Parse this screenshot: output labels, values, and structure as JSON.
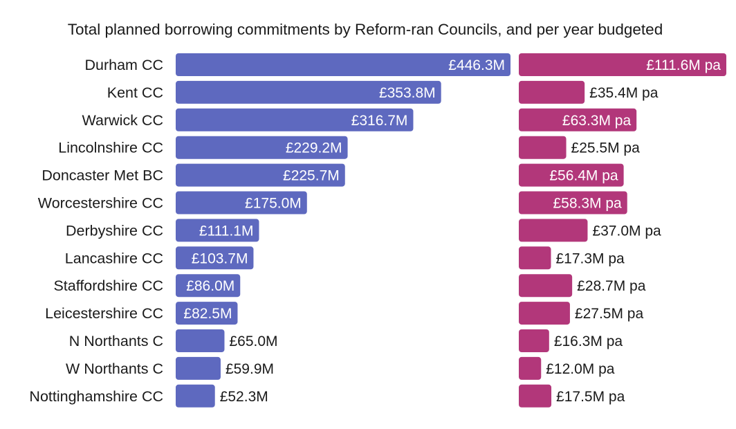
{
  "chart_data": {
    "type": "bar",
    "orientation": "horizontal",
    "title": "Total planned borrowing commitments by Reform-ran Councils, and per year budgeted",
    "categories": [
      "Durham CC",
      "Kent CC",
      "Warwick CC",
      "Lincolnshire CC",
      "Doncaster Met BC",
      "Worcestershire CC",
      "Derbyshire CC",
      "Lancashire CC",
      "Staffordshire CC",
      "Leicestershire CC",
      "N Northants C",
      "W Northants C",
      "Nottinghamshire CC"
    ],
    "series": [
      {
        "color": "#5e69bf",
        "values": [
          446.3,
          353.8,
          316.7,
          229.2,
          225.7,
          175.0,
          111.1,
          103.7,
          86.0,
          82.5,
          65.0,
          59.9,
          52.3
        ],
        "labels": [
          "£446.3M",
          "£353.8M",
          "£316.7M",
          "£229.2M",
          "£225.7M",
          "£175.0M",
          "£111.1M",
          "£103.7M",
          "£86.0M",
          "£82.5M",
          "£65.0M",
          "£59.9M",
          "£52.3M"
        ]
      },
      {
        "color": "#b2377a",
        "values": [
          111.6,
          35.4,
          63.3,
          25.5,
          56.4,
          58.3,
          37.0,
          17.3,
          28.7,
          27.5,
          16.3,
          12.0,
          17.5
        ],
        "labels": [
          "£111.6M pa",
          "£35.4M pa",
          "£63.3M pa",
          "£25.5M pa",
          "£56.4M pa",
          "£58.3M pa",
          "£37.0M pa",
          "£17.3M pa",
          "£28.7M pa",
          "£27.5M pa",
          "£16.3M pa",
          "£12.0M pa",
          "£17.5M pa"
        ]
      }
    ],
    "grid": false,
    "legend": "none"
  }
}
